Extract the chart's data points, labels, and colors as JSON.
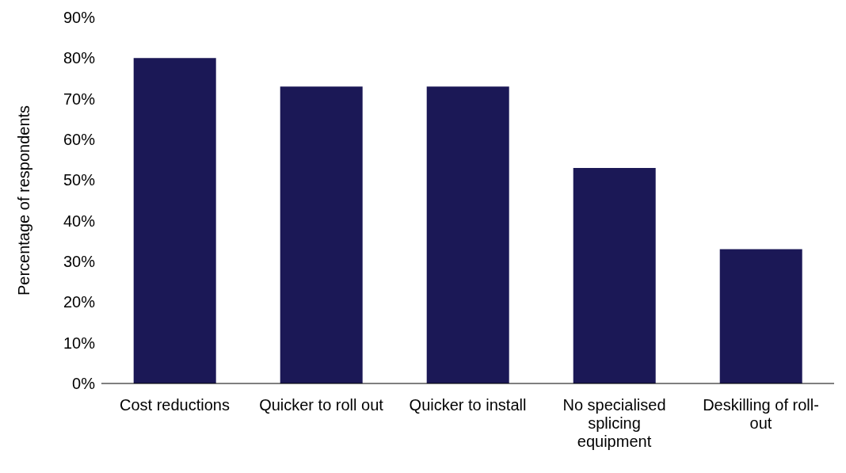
{
  "chart_data": {
    "type": "bar",
    "ylabel": "Percentage of respondents",
    "categories": [
      "Cost reductions",
      "Quicker to roll out",
      "Quicker to install",
      "No specialised splicing equipment",
      "Deskilling of roll-out"
    ],
    "values": [
      80,
      73,
      73,
      53,
      33
    ],
    "color": "#1b1856",
    "ylim": [
      0,
      90
    ],
    "yticks": [
      {
        "value": 0,
        "label": "0%"
      },
      {
        "value": 10,
        "label": "10%"
      },
      {
        "value": 20,
        "label": "20%"
      },
      {
        "value": 30,
        "label": "30%"
      },
      {
        "value": 40,
        "label": "40%"
      },
      {
        "value": 50,
        "label": "50%"
      },
      {
        "value": 60,
        "label": "60%"
      },
      {
        "value": 70,
        "label": "70%"
      },
      {
        "value": 80,
        "label": "80%"
      },
      {
        "value": 90,
        "label": "90%"
      }
    ],
    "grid": false,
    "legend": false
  }
}
